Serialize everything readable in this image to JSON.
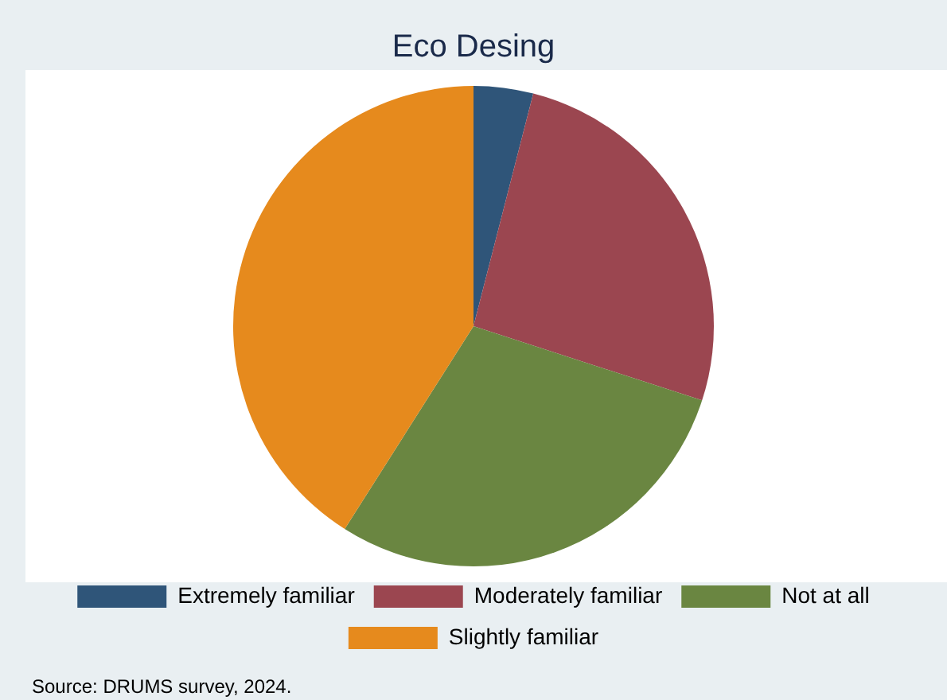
{
  "chart_data": {
    "type": "pie",
    "title": "Eco Desing",
    "categories": [
      "Extremely familiar",
      "Moderately familiar",
      "Not at all",
      "Slightly familiar"
    ],
    "values": [
      4,
      26,
      29,
      41
    ],
    "colors": [
      "#2f5579",
      "#9b4650",
      "#6a8641",
      "#e68a1d"
    ],
    "legend": "bottom",
    "annotations": [
      "Source: DRUMS survey, 2024."
    ]
  }
}
